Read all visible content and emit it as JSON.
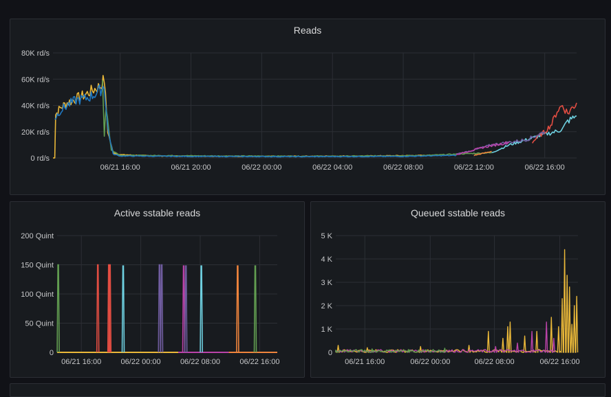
{
  "panels": {
    "reads": {
      "title": "Reads",
      "chart_data": {
        "type": "line",
        "title": "Reads",
        "y_unit": "rd/s",
        "y_ticks": [
          "0 rd/s",
          "20K rd/s",
          "40K rd/s",
          "60K rd/s",
          "80K rd/s"
        ],
        "ylim": [
          0,
          80000
        ],
        "x_ticks": [
          "06/21 16:00",
          "06/21 20:00",
          "06/22 00:00",
          "06/22 04:00",
          "06/22 08:00",
          "06/22 12:00",
          "06/22 16:00"
        ],
        "x_range_hours": [
          12.2,
          41.8
        ],
        "grid": true,
        "series": [
          {
            "color": "#EAB839",
            "points": [
              [
                12.2,
                0
              ],
              [
                12.3,
                0
              ],
              [
                12.35,
                33000
              ],
              [
                12.6,
                38000
              ],
              [
                13.0,
                42000
              ],
              [
                13.5,
                45000
              ],
              [
                14.0,
                48000
              ],
              [
                14.5,
                52000
              ],
              [
                14.9,
                55000
              ],
              [
                15.1,
                60000
              ],
              [
                15.3,
                20000
              ],
              [
                15.6,
                4000
              ],
              [
                16,
                2500
              ],
              [
                18,
                1500
              ],
              [
                24,
                1200
              ],
              [
                30,
                1500
              ],
              [
                34,
                2000
              ]
            ]
          },
          {
            "color": "#629E51",
            "points": [
              [
                15.0,
                58000
              ],
              [
                15.1,
                18000
              ],
              [
                15.2,
                40000
              ],
              [
                15.5,
                6000
              ],
              [
                16,
                2000
              ],
              [
                22,
                1500
              ],
              [
                28,
                1300
              ],
              [
                33,
                1800
              ],
              [
                36,
                3500
              ],
              [
                37,
                4000
              ]
            ]
          },
          {
            "color": "#6ED0E0",
            "points": [
              [
                37,
                4000
              ],
              [
                38,
                10000
              ],
              [
                39,
                14000
              ],
              [
                40,
                18000
              ],
              [
                40.6,
                20000
              ],
              [
                41.0,
                22000
              ],
              [
                41.3,
                28000
              ],
              [
                41.8,
                32000
              ]
            ]
          },
          {
            "color": "#EF843C",
            "points": [
              [
                36,
                2000
              ],
              [
                37,
                5000
              ]
            ]
          },
          {
            "color": "#E24D42",
            "points": [
              [
                39.3,
                12000
              ],
              [
                39.6,
                16000
              ],
              [
                40,
                20000
              ],
              [
                40.4,
                26000
              ],
              [
                40.7,
                36000
              ],
              [
                41,
                40000
              ],
              [
                41.3,
                34000
              ],
              [
                41.8,
                42000
              ]
            ]
          },
          {
            "color": "#1F78C1",
            "points": [
              [
                12.3,
                30000
              ],
              [
                12.6,
                36000
              ],
              [
                13,
                40000
              ],
              [
                13.5,
                44000
              ],
              [
                14,
                45000
              ],
              [
                14.5,
                48000
              ],
              [
                14.9,
                52000
              ],
              [
                15.1,
                55000
              ],
              [
                15.3,
                22000
              ],
              [
                15.6,
                3000
              ],
              [
                16,
                1500
              ],
              [
                20,
                1200
              ],
              [
                26,
                1000
              ],
              [
                32,
                1200
              ],
              [
                35,
                2000
              ]
            ]
          },
          {
            "color": "#705DA0",
            "points": [
              [
                35,
                3000
              ],
              [
                36,
                6000
              ],
              [
                37,
                10000
              ],
              [
                38,
                12000
              ],
              [
                39,
                14000
              ],
              [
                40,
                20000
              ]
            ]
          },
          {
            "color": "#BA43A9",
            "points": [
              [
                35,
                2500
              ],
              [
                36.5,
                8000
              ],
              [
                38,
                12000
              ]
            ]
          }
        ]
      }
    },
    "active": {
      "title": "Active sstable reads",
      "chart_data": {
        "type": "line",
        "title": "Active sstable reads",
        "y_ticks": [
          "0",
          "50 Quint",
          "100 Quint",
          "150 Quint",
          "200 Quint"
        ],
        "ylim": [
          0,
          200
        ],
        "x_ticks": [
          "06/21 16:00",
          "06/22 00:00",
          "06/22 08:00",
          "06/22 16:00"
        ],
        "grid": true,
        "spikes": [
          {
            "color": "#629E51",
            "x": 0.005,
            "value": 150
          },
          {
            "color": "#E24D42",
            "x": 0.185,
            "value": 150
          },
          {
            "color": "#E24D42",
            "x": 0.235,
            "value": 150
          },
          {
            "color": "#E24D42",
            "x": 0.24,
            "value": 150
          },
          {
            "color": "#6ED0E0",
            "x": 0.3,
            "value": 148
          },
          {
            "color": "#705DA0",
            "x": 0.465,
            "value": 150
          },
          {
            "color": "#705DA0",
            "x": 0.475,
            "value": 150
          },
          {
            "color": "#BA43A9",
            "x": 0.575,
            "value": 148
          },
          {
            "color": "#705DA0",
            "x": 0.585,
            "value": 148
          },
          {
            "color": "#6ED0E0",
            "x": 0.655,
            "value": 148
          },
          {
            "color": "#EF843C",
            "x": 0.82,
            "value": 148
          },
          {
            "color": "#629E51",
            "x": 0.9,
            "value": 148
          }
        ]
      }
    },
    "queued": {
      "title": "Queued sstable reads",
      "chart_data": {
        "type": "line",
        "title": "Queued sstable reads",
        "y_ticks": [
          "0",
          "1 K",
          "2 K",
          "3 K",
          "4 K",
          "5 K"
        ],
        "ylim": [
          0,
          5000
        ],
        "x_ticks": [
          "06/21 16:00",
          "06/22 00:00",
          "06/22 08:00",
          "06/22 16:00"
        ],
        "grid": true,
        "series": [
          {
            "color": "#EAB839",
            "spikes": [
              [
                0.01,
                300
              ],
              [
                0.13,
                200
              ],
              [
                0.35,
                250
              ],
              [
                0.55,
                300
              ],
              [
                0.63,
                900
              ],
              [
                0.69,
                600
              ],
              [
                0.71,
                1100
              ],
              [
                0.72,
                1300
              ],
              [
                0.78,
                700
              ],
              [
                0.83,
                900
              ],
              [
                0.89,
                1500
              ],
              [
                0.92,
                1100
              ],
              [
                0.935,
                2300
              ],
              [
                0.945,
                4400
              ],
              [
                0.955,
                3300
              ],
              [
                0.965,
                2800
              ],
              [
                0.975,
                1200
              ],
              [
                0.985,
                2000
              ],
              [
                0.995,
                2400
              ]
            ]
          },
          {
            "color": "#BA43A9",
            "spikes": [
              [
                0.66,
                250
              ],
              [
                0.75,
                400
              ],
              [
                0.81,
                900
              ],
              [
                0.87,
                1300
              ],
              [
                0.9,
                600
              ]
            ]
          },
          {
            "color": "#629E51",
            "spikes": [
              [
                0.15,
                150
              ],
              [
                0.3,
                120
              ],
              [
                0.45,
                180
              ]
            ]
          }
        ]
      }
    }
  }
}
